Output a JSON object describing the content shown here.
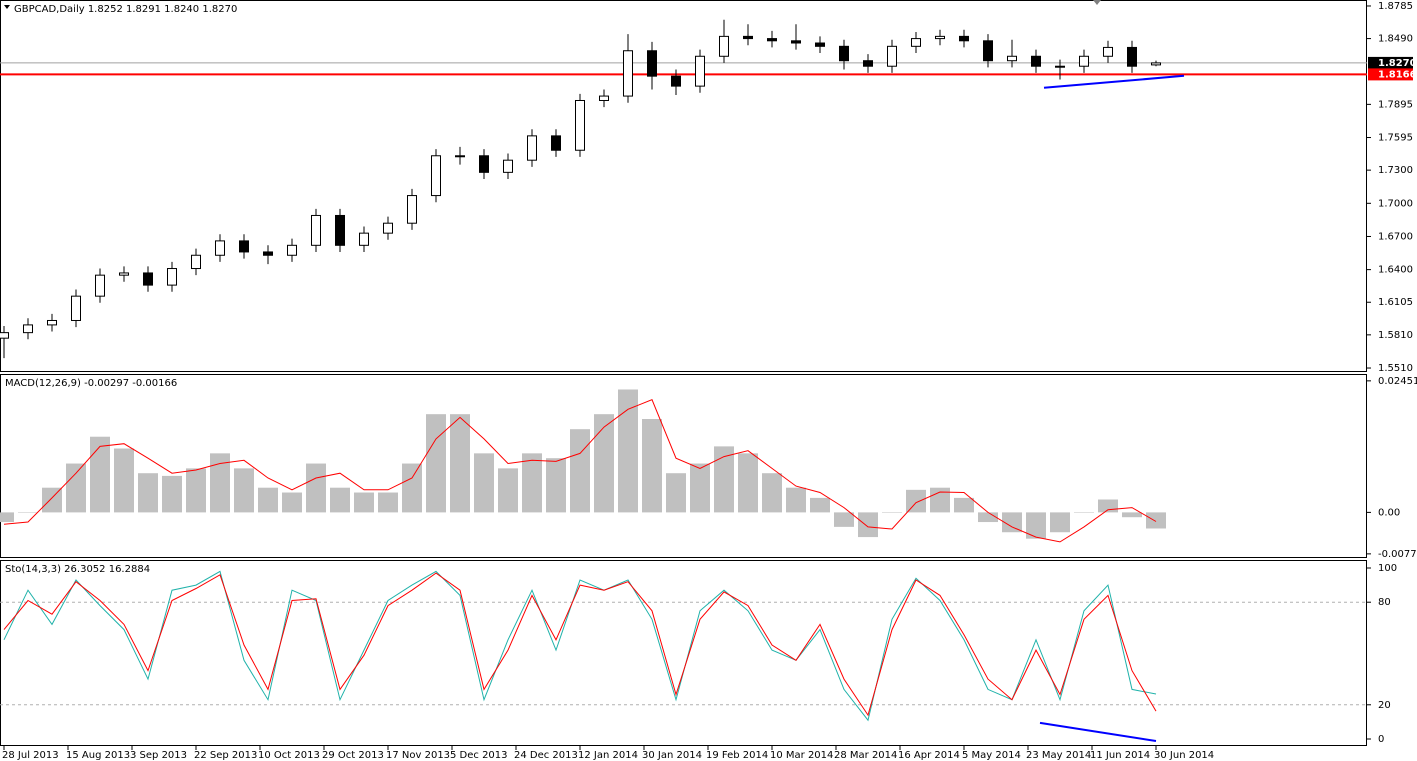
{
  "chart_data": [
    {
      "type": "candlestick",
      "title": "GBPCAD,Daily  1.8252 1.8291 1.8240 1.8270",
      "x": [
        0,
        6,
        12,
        18,
        24,
        30,
        36,
        42,
        48,
        54,
        60,
        66,
        72,
        78,
        84,
        90,
        96,
        102,
        108,
        114,
        120,
        126,
        132,
        138,
        144,
        150,
        156,
        162,
        168,
        174,
        180,
        186,
        192,
        198,
        204,
        210,
        216,
        222,
        228,
        234,
        240,
        246,
        252,
        258,
        264,
        270,
        276,
        282,
        288
      ],
      "open": [
        1.578,
        1.583,
        1.59,
        1.594,
        1.616,
        1.635,
        1.637,
        1.626,
        1.641,
        1.653,
        1.666,
        1.656,
        1.653,
        1.662,
        1.689,
        1.662,
        1.673,
        1.682,
        1.707,
        1.743,
        1.743,
        1.728,
        1.739,
        1.761,
        1.748,
        1.793,
        1.797,
        1.838,
        1.815,
        1.806,
        1.833,
        1.851,
        1.849,
        1.847,
        1.845,
        1.842,
        1.829,
        1.824,
        1.842,
        1.849,
        1.851,
        1.847,
        1.829,
        1.833,
        1.824,
        1.824,
        1.833,
        1.841,
        1.8252
      ],
      "high": [
        1.589,
        1.596,
        1.6,
        1.622,
        1.641,
        1.643,
        1.643,
        1.647,
        1.659,
        1.672,
        1.672,
        1.662,
        1.668,
        1.695,
        1.695,
        1.679,
        1.688,
        1.713,
        1.749,
        1.751,
        1.749,
        1.745,
        1.767,
        1.767,
        1.799,
        1.803,
        1.853,
        1.846,
        1.821,
        1.839,
        1.866,
        1.862,
        1.856,
        1.862,
        1.851,
        1.848,
        1.835,
        1.848,
        1.855,
        1.857,
        1.857,
        1.853,
        1.848,
        1.839,
        1.83,
        1.839,
        1.847,
        1.847,
        1.8291
      ],
      "low": [
        1.56,
        1.577,
        1.584,
        1.588,
        1.61,
        1.629,
        1.62,
        1.62,
        1.635,
        1.647,
        1.65,
        1.645,
        1.647,
        1.656,
        1.656,
        1.656,
        1.667,
        1.676,
        1.701,
        1.735,
        1.722,
        1.722,
        1.733,
        1.742,
        1.742,
        1.787,
        1.791,
        1.803,
        1.798,
        1.8,
        1.827,
        1.843,
        1.841,
        1.839,
        1.836,
        1.821,
        1.818,
        1.818,
        1.836,
        1.843,
        1.841,
        1.823,
        1.823,
        1.818,
        1.812,
        1.818,
        1.827,
        1.818,
        1.824
      ],
      "close": [
        1.583,
        1.59,
        1.594,
        1.616,
        1.635,
        1.637,
        1.626,
        1.641,
        1.653,
        1.666,
        1.656,
        1.653,
        1.662,
        1.689,
        1.662,
        1.673,
        1.682,
        1.707,
        1.743,
        1.743,
        1.728,
        1.739,
        1.761,
        1.748,
        1.793,
        1.797,
        1.838,
        1.815,
        1.806,
        1.833,
        1.851,
        1.849,
        1.847,
        1.845,
        1.842,
        1.829,
        1.824,
        1.842,
        1.849,
        1.851,
        1.847,
        1.829,
        1.833,
        1.824,
        1.824,
        1.833,
        1.841,
        1.824,
        1.827
      ],
      "xlim": [
        -1,
        340.75
      ],
      "ylim": [
        1.5474,
        1.883
      ],
      "yticks": [
        1.8785,
        {
          "value": 1.849,
          "label": "1.8490"
        },
        1.7895,
        1.7595,
        {
          "value": 1.73,
          "label": "1.7300"
        },
        {
          "value": 1.7,
          "label": "1.7000"
        },
        {
          "value": 1.67,
          "label": "1.6700"
        },
        {
          "value": 1.64,
          "label": "1.6400"
        },
        1.6105,
        {
          "value": 1.581,
          "label": "1.5810"
        },
        {
          "value": 1.551,
          "label": "1.5510"
        }
      ],
      "markers": [
        {
          "value": 1.827,
          "label": "1.8270",
          "color": "#000000",
          "line_color": "#a0a0a0"
        },
        {
          "value": 1.8166,
          "label": "1.8166",
          "color": "#ff0000",
          "line_color": "#ff0000"
        }
      ],
      "trendlines": [
        {
          "x": [
            260,
            295
          ],
          "y": [
            1.8045,
            1.8153
          ],
          "color": "#0000ff"
        }
      ]
    },
    {
      "type": "macd",
      "title": "MACD(12,26,9) -0.00297 -0.00166",
      "x": [
        0,
        6,
        12,
        18,
        24,
        30,
        36,
        42,
        48,
        54,
        60,
        66,
        72,
        78,
        84,
        90,
        96,
        102,
        108,
        114,
        120,
        126,
        132,
        138,
        144,
        150,
        156,
        162,
        168,
        174,
        180,
        186,
        192,
        198,
        204,
        210,
        216,
        222,
        228,
        234,
        240,
        246,
        252,
        258,
        264,
        270,
        276,
        282,
        288
      ],
      "series": [
        {
          "color": "#c0c0c0",
          "values": [
            -0.0018,
            0,
            0.0046,
            0.0091,
            0.0141,
            0.0119,
            0.0073,
            0.0068,
            0.0082,
            0.011,
            0.0082,
            0.0046,
            0.0037,
            0.0091,
            0.0046,
            0.0037,
            0.0037,
            0.0091,
            0.0183,
            0.0183,
            0.011,
            0.0082,
            0.011,
            0.0101,
            0.0155,
            0.0183,
            0.0229,
            0.0174,
            0.0073,
            0.0091,
            0.0123,
            0.011,
            0.0073,
            0.0046,
            0.0027,
            -0.0027,
            -0.0046,
            0,
            0.0042,
            0.0046,
            0.0027,
            -0.0018,
            -0.0037,
            -0.0049,
            -0.0037,
            0,
            0.0024,
            -0.0009,
            -0.003
          ]
        },
        {
          "color": "#ff0000",
          "values": [
            -0.0022,
            -0.0018,
            0.0027,
            0.0073,
            0.0123,
            0.0128,
            0.0101,
            0.0073,
            0.0079,
            0.0091,
            0.0097,
            0.0064,
            0.0042,
            0.0064,
            0.0073,
            0.0042,
            0.0042,
            0.0064,
            0.0137,
            0.0177,
            0.0137,
            0.0091,
            0.0097,
            0.0095,
            0.011,
            0.0159,
            0.0192,
            0.021,
            0.0101,
            0.0082,
            0.0104,
            0.0115,
            0.0082,
            0.0049,
            0.0037,
            0.0009,
            -0.0027,
            -0.0031,
            0.0018,
            0.0038,
            0.0037,
            0,
            -0.0027,
            -0.0046,
            -0.0055,
            -0.0027,
            0.0005,
            0.0009,
            -0.0017
          ]
        }
      ],
      "xlim": [
        -1,
        340.75
      ],
      "ylim": [
        -0.0085,
        0.0256
      ],
      "yticks": [
        0.02451,
        {
          "value": 0,
          "label": "0.00"
        },
        -0.00773
      ]
    },
    {
      "type": "line",
      "title": "Sto(14,3,3) 26.3052 16.2884",
      "x": [
        0,
        6,
        12,
        18,
        24,
        30,
        36,
        42,
        48,
        54,
        60,
        66,
        72,
        78,
        84,
        90,
        96,
        102,
        108,
        114,
        120,
        126,
        132,
        138,
        144,
        150,
        156,
        162,
        168,
        174,
        180,
        186,
        192,
        198,
        204,
        210,
        216,
        222,
        228,
        234,
        240,
        246,
        252,
        258,
        264,
        270,
        276,
        282,
        288
      ],
      "series": [
        {
          "color": "#20b2aa",
          "values": [
            58,
            87,
            67,
            93,
            78,
            64,
            35,
            87,
            90,
            98,
            46,
            23,
            87,
            81,
            23,
            52,
            81,
            90,
            98,
            84,
            23,
            58,
            87,
            52,
            93,
            87,
            93,
            70,
            23,
            75,
            87,
            75,
            52,
            46,
            64,
            29,
            11,
            70,
            94,
            81,
            58,
            29,
            23,
            58,
            23,
            75,
            90,
            29,
            26.3052
          ]
        },
        {
          "color": "#ff0000",
          "values": [
            64,
            81,
            73,
            92,
            81,
            67,
            40,
            81,
            88,
            96,
            55,
            29,
            81,
            82,
            29,
            49,
            78,
            87,
            97,
            87,
            29,
            52,
            84,
            58,
            90,
            87,
            92,
            75,
            26,
            70,
            86,
            78,
            55,
            46,
            67,
            35,
            14,
            64,
            93,
            84,
            61,
            35,
            23,
            52,
            26,
            70,
            84,
            40,
            16.2884
          ]
        }
      ],
      "xlim": [
        -1,
        340.75
      ],
      "ylim": [
        -4.1,
        104.1
      ],
      "yticks": [
        100,
        80,
        20,
        0
      ],
      "dashed_levels": [
        80,
        20
      ],
      "trendlines": [
        {
          "x": [
            259,
            288
          ],
          "y": [
            9.4,
            -1.2
          ],
          "color": "#0000ff"
        }
      ],
      "xticks": [
        {
          "value": 0,
          "label": "28 Jul 2013"
        },
        {
          "value": 16,
          "label": "15 Aug 2013"
        },
        {
          "value": 32,
          "label": "3 Sep 2013"
        },
        {
          "value": 48,
          "label": "22 Sep 2013"
        },
        {
          "value": 64,
          "label": "10 Oct 2013"
        },
        {
          "value": 80,
          "label": "29 Oct 2013"
        },
        {
          "value": 96,
          "label": "17 Nov 2013"
        },
        {
          "value": 112,
          "label": "5 Dec 2013"
        },
        {
          "value": 128,
          "label": "24 Dec 2013"
        },
        {
          "value": 144,
          "label": "12 Jan 2014"
        },
        {
          "value": 160,
          "label": "30 Jan 2014"
        },
        {
          "value": 176,
          "label": "19 Feb 2014"
        },
        {
          "value": 192,
          "label": "10 Mar 2014"
        },
        {
          "value": 208,
          "label": "28 Mar 2014"
        },
        {
          "value": 224,
          "label": "16 Apr 2014"
        },
        {
          "value": 240,
          "label": "5 May 2014"
        },
        {
          "value": 256,
          "label": "23 May 2014"
        },
        {
          "value": 272,
          "label": "11 Jun 2014"
        },
        {
          "value": 288,
          "label": "30 Jun 2014"
        }
      ]
    }
  ]
}
